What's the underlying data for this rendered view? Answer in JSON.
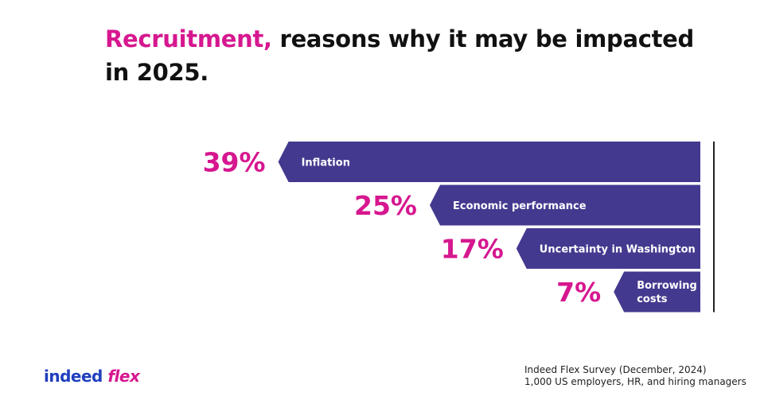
{
  "header": {
    "title_highlight": "Recruitment,",
    "title_rest": " reasons why it may be impacted in 2025."
  },
  "chart_data": {
    "type": "bar",
    "orientation": "horizontal",
    "categories": [
      "Inflation",
      "Economic performance",
      "Uncertainty in Washington",
      "Borrowing costs"
    ],
    "values": [
      39,
      25,
      17,
      7
    ],
    "value_labels": [
      "39%",
      "25%",
      "17%",
      "7%"
    ],
    "value_unit": "%",
    "bar_color": "#433a8f",
    "value_color": "#d6178f"
  },
  "footer": {
    "logo_part1": "indeed",
    "logo_part2": " flex",
    "source_line1": "Indeed Flex Survey (December, 2024)",
    "source_line2": "1,000 US  employers, HR, and hiring managers"
  },
  "colors": {
    "accent": "#d6178f",
    "bar": "#433a8f",
    "logo_blue": "#1f3fbf",
    "text": "#111111"
  }
}
